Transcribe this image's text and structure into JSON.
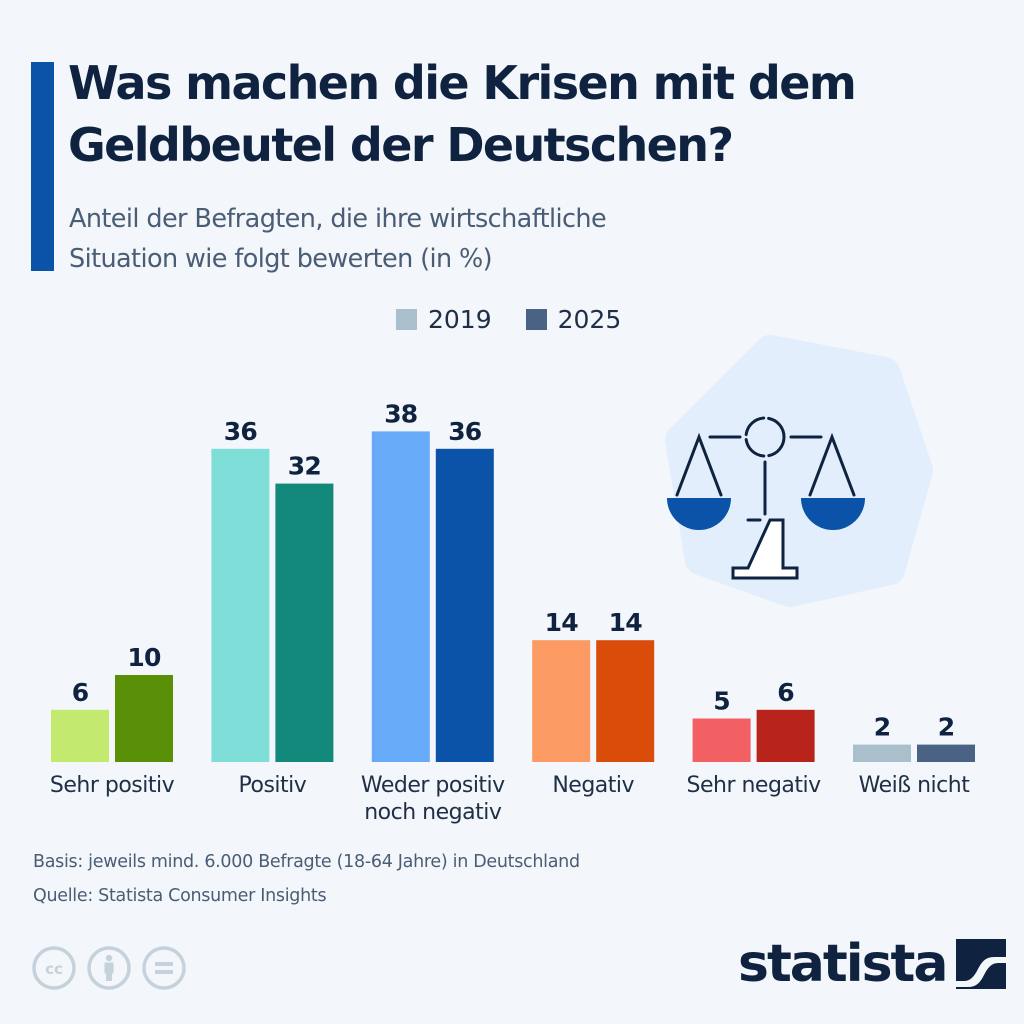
{
  "header": {
    "title": "Was machen die Krisen mit dem Geldbeutel der Deutschen?",
    "subtitle_line1": "Anteil der Befragten, die ihre wirtschaftliche",
    "subtitle_line2": "Situation wie folgt bewerten (in %)",
    "accent_color": "#0a53a8"
  },
  "legend": {
    "items": [
      {
        "label": "2019",
        "color": "#a9bfcc"
      },
      {
        "label": "2025",
        "color": "#4a6283"
      }
    ]
  },
  "chart_data": {
    "type": "bar",
    "title": "Was machen die Krisen mit dem Geldbeutel der Deutschen?",
    "subtitle": "Anteil der Befragten, die ihre wirtschaftliche Situation wie folgt bewerten (in %)",
    "xlabel": "",
    "ylabel": "",
    "unit": "%",
    "ylim": [
      0,
      40
    ],
    "grid": false,
    "legend_position": "top-center",
    "categories": [
      [
        "Sehr positiv"
      ],
      [
        "Positiv"
      ],
      [
        "Weder positiv",
        "noch negativ"
      ],
      [
        "Negativ"
      ],
      [
        "Sehr negativ"
      ],
      [
        "Weiß nicht"
      ]
    ],
    "series": [
      {
        "name": "2019",
        "values": [
          6,
          36,
          38,
          14,
          5,
          2
        ]
      },
      {
        "name": "2025",
        "values": [
          10,
          32,
          36,
          14,
          6,
          2
        ]
      }
    ],
    "bar_colors": [
      [
        "#c3ea6e",
        "#5a9008"
      ],
      [
        "#7fdfd8",
        "#13897b"
      ],
      [
        "#67aaf7",
        "#0a53a8"
      ],
      [
        "#fb9a62",
        "#d94c0a"
      ],
      [
        "#f26064",
        "#b8231c"
      ],
      [
        "#a9bfcc",
        "#4a6283"
      ]
    ]
  },
  "illustration": {
    "icon": "balance-scale-icon",
    "pan_color": "#0a53a8",
    "background_color": "#e2eefc"
  },
  "footer": {
    "basis": "Basis: jeweils mind. 6.000 Befragte (18-64 Jahre) in Deutschland",
    "source": "Quelle: Statista Consumer Insights",
    "license_icons": [
      "cc-icon",
      "attribution-icon",
      "no-derivatives-icon"
    ],
    "logo_text": "statista"
  }
}
